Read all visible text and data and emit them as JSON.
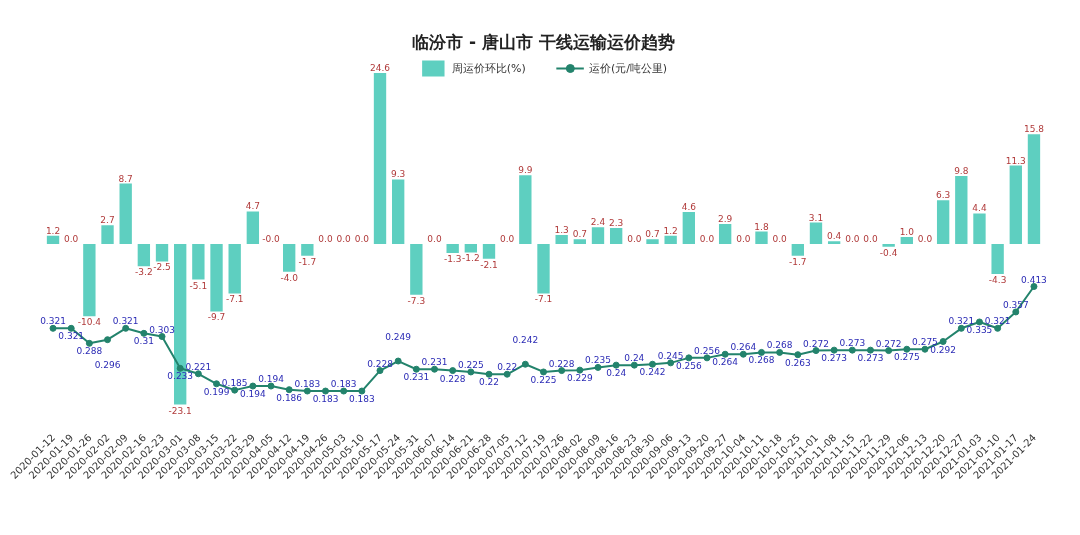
{
  "chart_data": {
    "type": "bar",
    "title": "临汾市 - 唐山市 干线运输运价趋势",
    "categories": [
      "2020-01-12",
      "2020-01-19",
      "2020-01-26",
      "2020-02-02",
      "2020-02-09",
      "2020-02-16",
      "2020-02-23",
      "2020-03-01",
      "2020-03-08",
      "2020-03-15",
      "2020-03-22",
      "2020-03-29",
      "2020-04-05",
      "2020-04-12",
      "2020-04-19",
      "2020-04-26",
      "2020-05-03",
      "2020-05-10",
      "2020-05-17",
      "2020-05-24",
      "2020-05-31",
      "2020-06-07",
      "2020-06-14",
      "2020-06-21",
      "2020-06-28",
      "2020-07-05",
      "2020-07-12",
      "2020-07-19",
      "2020-07-26",
      "2020-08-02",
      "2020-08-09",
      "2020-08-16",
      "2020-08-23",
      "2020-08-30",
      "2020-09-06",
      "2020-09-13",
      "2020-09-20",
      "2020-09-27",
      "2020-10-04",
      "2020-10-11",
      "2020-10-18",
      "2020-10-25",
      "2020-11-01",
      "2020-11-08",
      "2020-11-15",
      "2020-11-22",
      "2020-11-29",
      "2020-12-06",
      "2020-12-13",
      "2020-12-20",
      "2020-12-27",
      "2021-01-03",
      "2021-01-10",
      "2021-01-17",
      "2021-01-24"
    ],
    "series": [
      {
        "name": "周运价环比(%)",
        "color": "#5ecfc0",
        "values": [
          1.2,
          0.0,
          -10.4,
          2.7,
          8.7,
          -3.2,
          -2.5,
          -23.1,
          -5.1,
          -9.7,
          -7.1,
          4.7,
          0.0,
          -4.0,
          -1.7,
          0.0,
          0.0,
          0.0,
          24.6,
          9.3,
          -7.3,
          0.0,
          -1.3,
          -1.2,
          -2.1,
          0.0,
          9.9,
          -7.1,
          1.3,
          0.7,
          2.4,
          2.3,
          0.0,
          0.7,
          1.2,
          4.6,
          0.0,
          2.9,
          0.0,
          1.8,
          0.0,
          -1.7,
          3.1,
          0.4,
          0.0,
          0.0,
          -0.4,
          1.0,
          0.0,
          6.3,
          9.8,
          4.4,
          -4.3,
          11.3,
          15.8
        ],
        "value_labels": [
          "1.2",
          "0.0",
          "-10.4",
          "2.7",
          "8.7",
          "-3.2",
          "-2.5",
          "-23.1",
          "-5.1",
          "-9.7",
          "-7.1",
          "4.7",
          "-0.0",
          "-4.0",
          "-1.7",
          "0.0",
          "0.0",
          "0.0",
          "24.6",
          "9.3",
          "-7.3",
          "0.0",
          "-1.3",
          "-1.2",
          "-2.1",
          "0.0",
          "9.9",
          "-7.1",
          "1.3",
          "0.7",
          "2.4",
          "2.3",
          "0.0",
          "0.7",
          "1.2",
          "4.6",
          "0.0",
          "2.9",
          "0.0",
          "1.8",
          "0.0",
          "-1.7",
          "3.1",
          "0.4",
          "0.0",
          "0.0",
          "-0.4",
          "1.0",
          "0.0",
          "6.3",
          "9.8",
          "4.4",
          "-4.3",
          "11.3",
          "15.8"
        ]
      },
      {
        "name": "运价(元/吨公里)",
        "type": "line",
        "axis": "y2",
        "color": "#23836c",
        "values": [
          0.321,
          0.321,
          0.288,
          0.296,
          0.321,
          0.31,
          0.303,
          0.233,
          0.221,
          0.199,
          0.185,
          0.194,
          0.194,
          0.186,
          0.183,
          0.183,
          0.183,
          0.183,
          0.228,
          0.249,
          0.231,
          0.231,
          0.228,
          0.225,
          0.22,
          0.22,
          0.242,
          0.225,
          0.228,
          0.229,
          0.235,
          0.24,
          0.24,
          0.242,
          0.245,
          0.256,
          0.256,
          0.264,
          0.264,
          0.268,
          0.268,
          0.263,
          0.272,
          0.273,
          0.273,
          0.273,
          0.272,
          0.275,
          0.275,
          0.292,
          0.321,
          0.335,
          0.321,
          0.357,
          0.413
        ],
        "value_labels": [
          "0.321",
          "0.321",
          "0.288",
          "0.296",
          "0.321",
          "0.31",
          "0.303",
          "0.233",
          "0.221",
          "0.199",
          "0.185",
          "0.194",
          "0.194",
          "0.186",
          "0.183",
          "0.183",
          "0.183",
          "0.183",
          "0.228",
          "0.249",
          "0.231",
          "0.231",
          "0.228",
          "0.225",
          "0.22",
          "0.22",
          "0.242",
          "0.225",
          "0.228",
          "0.229",
          "0.235",
          "0.24",
          "0.24",
          "0.242",
          "0.245",
          "0.256",
          "0.256",
          "0.264",
          "0.264",
          "0.268",
          "0.268",
          "0.263",
          "0.272",
          "0.273",
          "0.273",
          "0.273",
          "0.272",
          "0.275",
          "0.275",
          "0.292",
          "0.321",
          "0.335",
          "0.321",
          "0.357",
          "0.413"
        ]
      }
    ],
    "tick_labels": "x",
    "legend": "top",
    "marker": "circle",
    "line_style": "solid"
  }
}
